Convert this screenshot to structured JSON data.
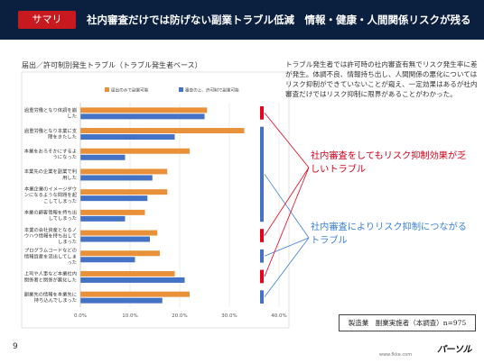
{
  "header": {
    "badge": "サマリ",
    "title": "社内審査だけでは防げない副業トラブル低減　情報・健康・人間関係リスクが残る"
  },
  "description": "トラブル発生者では許可時の社内審査有無でリスク発生率に差が発生。体調不良、情報持ち出し、人間関係の悪化についてはリスク抑制ができていないことが窺え、一定効果はあるが社内審査だけではリスク抑制に限界があることがわかった。",
  "annotations": {
    "red": "社内審査をしてもリスク抑制効果が乏しいトラブル",
    "blue": "社内審査によりリスク抑制につながるトラブル"
  },
  "sample": "製造業　副業実施者（本調査）n=975",
  "page_number": "9",
  "footer_url": "www.fkke.com",
  "footer_logo": "パーソル",
  "colors": {
    "header": "#0b1f3f",
    "badge": "#c8191f",
    "orange": "#e8913a",
    "blue": "#4472c4",
    "red": "#e5001c",
    "annot_blue": "#3a7fd5"
  },
  "chart_data": {
    "type": "bar",
    "orientation": "horizontal",
    "title": "届出／許可制別発生トラブル（トラブル発生者ベース）",
    "categories": [
      "過重労働となり体調を崩した",
      "過重労働となり本業に支障をきたした",
      "本業をおろそかにするようになった",
      "本業先の企業を副業で利用した",
      "本業企業のイメージダウンになるような問題を起こしてしまった",
      "本業の顧客情報を持ち出してしまった",
      "本業の会社資産となるノウハウ情報を持ち出してしまった",
      "プログラムコードなどの情報資産を流出してしまった",
      "上司や人事など本業社内関係者と関係が悪化した",
      "副業先の情報を本業先に持ち込んでしまった"
    ],
    "series": [
      {
        "name": "届出のみで副業可能",
        "color": "#e8913a",
        "values": [
          25.5,
          33.0,
          22.0,
          17.5,
          17.5,
          13.0,
          15.5,
          16.0,
          19.0,
          22.0
        ]
      },
      {
        "name": "審査の上、許可制で副業可能",
        "color": "#4472c4",
        "values": [
          25.0,
          19.0,
          9.0,
          14.5,
          13.5,
          9.0,
          14.0,
          11.0,
          21.0,
          16.5
        ]
      }
    ],
    "xlim": [
      0,
      40
    ],
    "xticks": [
      "0.0%",
      "10.0%",
      "20.0%",
      "30.0%",
      "40.0%"
    ],
    "markers": [
      "red",
      "blue",
      "blue",
      "blue",
      "blue",
      "blue",
      "red",
      "blue",
      "red",
      "blue"
    ]
  }
}
